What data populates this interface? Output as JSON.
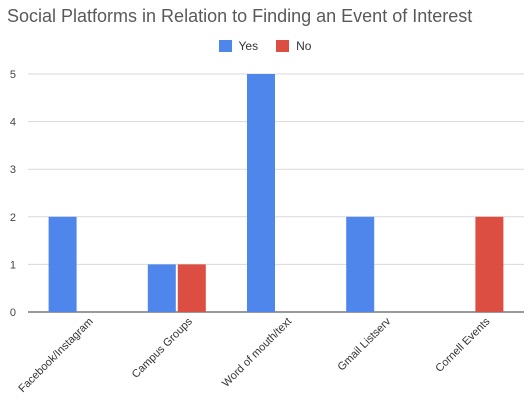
{
  "chart_data": {
    "type": "bar",
    "title": "Social Platforms in Relation to Finding an Event of Interest",
    "xlabel": "",
    "ylabel": "",
    "categories": [
      "Facebook/Instagram",
      "Campus Groups",
      "Word of mouth/text",
      "Gmail Listserv",
      "Cornell Events"
    ],
    "series": [
      {
        "name": "Yes",
        "color": "#4e86ec",
        "values": [
          2,
          1,
          5,
          2,
          0
        ]
      },
      {
        "name": "No",
        "color": "#dc4e41",
        "values": [
          0,
          1,
          0,
          0,
          2
        ]
      }
    ],
    "ylim": [
      0,
      5
    ],
    "yticks": [
      "0",
      "1",
      "2",
      "3",
      "4",
      "5"
    ],
    "grid": true,
    "legend_position": "top"
  }
}
